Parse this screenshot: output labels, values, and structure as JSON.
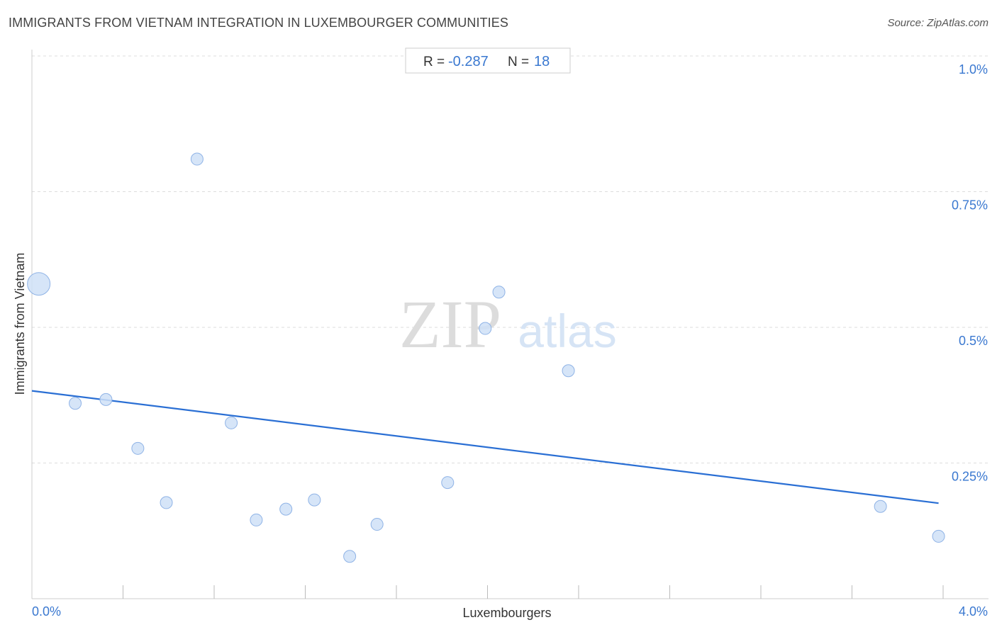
{
  "header": {
    "title": "IMMIGRANTS FROM VIETNAM INTEGRATION IN LUXEMBOURGER COMMUNITIES",
    "source": "Source: ZipAtlas.com"
  },
  "stats": {
    "r_label": "R =",
    "r_value": "-0.287",
    "n_label": "N =",
    "n_value": "18"
  },
  "watermark": {
    "zip": "ZIP",
    "atlas": "atlas"
  },
  "colors": {
    "accent": "#3a78d0",
    "point_fill": "#cfe0f7",
    "point_stroke": "#8fb3e6",
    "trend": "#2a6fd4",
    "grid": "#dddddd"
  },
  "chart_data": {
    "type": "scatter",
    "title": "IMMIGRANTS FROM VIETNAM INTEGRATION IN LUXEMBOURGER COMMUNITIES",
    "xlabel": "Luxembourgers",
    "ylabel": "Immigrants from Vietnam",
    "xlim": [
      0,
      4.0
    ],
    "ylim": [
      0,
      1.0
    ],
    "x_tick_labels": [
      {
        "value": 0,
        "label": "0.0%"
      },
      {
        "value": 4.0,
        "label": "4.0%"
      }
    ],
    "y_tick_labels": [
      {
        "value": 1.0,
        "label": "1.0%"
      },
      {
        "value": 0.75,
        "label": "0.75%"
      },
      {
        "value": 0.5,
        "label": "0.5%"
      },
      {
        "value": 0.25,
        "label": "0.25%"
      }
    ],
    "points": [
      {
        "x": 0.03,
        "y": 0.58,
        "size": "large"
      },
      {
        "x": 0.19,
        "y": 0.36
      },
      {
        "x": 0.325,
        "y": 0.367
      },
      {
        "x": 0.465,
        "y": 0.277
      },
      {
        "x": 0.59,
        "y": 0.177
      },
      {
        "x": 0.725,
        "y": 0.81
      },
      {
        "x": 0.875,
        "y": 0.324
      },
      {
        "x": 0.985,
        "y": 0.145
      },
      {
        "x": 1.115,
        "y": 0.165
      },
      {
        "x": 1.24,
        "y": 0.182
      },
      {
        "x": 1.395,
        "y": 0.078
      },
      {
        "x": 1.515,
        "y": 0.137
      },
      {
        "x": 1.825,
        "y": 0.214
      },
      {
        "x": 1.99,
        "y": 0.498
      },
      {
        "x": 2.05,
        "y": 0.565
      },
      {
        "x": 2.355,
        "y": 0.42
      },
      {
        "x": 3.725,
        "y": 0.17
      },
      {
        "x": 3.98,
        "y": 0.115
      }
    ],
    "trendline": {
      "x": [
        0,
        3.98
      ],
      "y": [
        0.383,
        0.176
      ]
    },
    "grid": true,
    "r": -0.287,
    "n": 18
  }
}
